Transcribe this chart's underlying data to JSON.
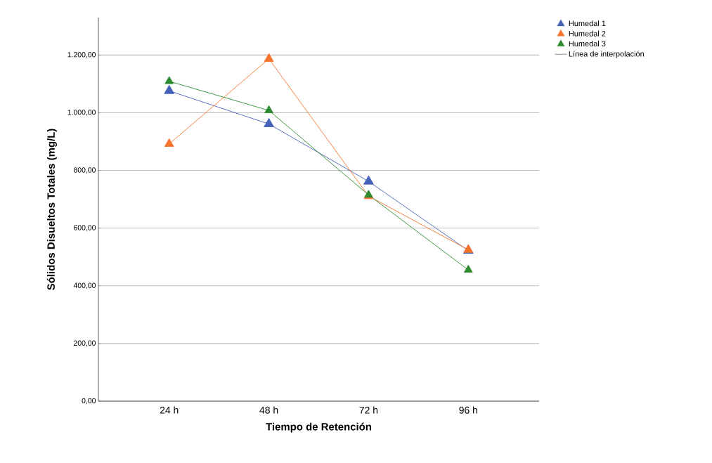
{
  "chart_data": {
    "type": "line",
    "xlabel": "Tiempo de Retención",
    "ylabel": "Sólidos Disueltos Totales (mg/L)",
    "categories": [
      "24 h",
      "48 h",
      "72 h",
      "96 h"
    ],
    "series": [
      {
        "name": "Humedal 1",
        "color": "#4562b8",
        "values": [
          1076,
          961,
          762,
          522
        ]
      },
      {
        "name": "Humedal 2",
        "color": "#f6742c",
        "values": [
          892,
          1187,
          711,
          525
        ]
      },
      {
        "name": "Humedal 3",
        "color": "#2e8a2e",
        "values": [
          1109,
          1008,
          715,
          455
        ]
      },
      {
        "name": "Línea de interpolación",
        "color": "#7f7f7f",
        "marker": "none",
        "values": [
          null,
          null,
          null,
          null
        ]
      }
    ],
    "ylim": [
      0,
      1330
    ],
    "yticks": [
      {
        "value": 0,
        "label": "0,00"
      },
      {
        "value": 200,
        "label": "200,00"
      },
      {
        "value": 400,
        "label": "400,00"
      },
      {
        "value": 600,
        "label": "600,00"
      },
      {
        "value": 800,
        "label": "800,00"
      },
      {
        "value": 1000,
        "label": "1.000,00"
      },
      {
        "value": 1200,
        "label": "1.200,00"
      }
    ],
    "grid": "y",
    "legend": "top right",
    "marker": "triangle",
    "line_style": "solid"
  }
}
